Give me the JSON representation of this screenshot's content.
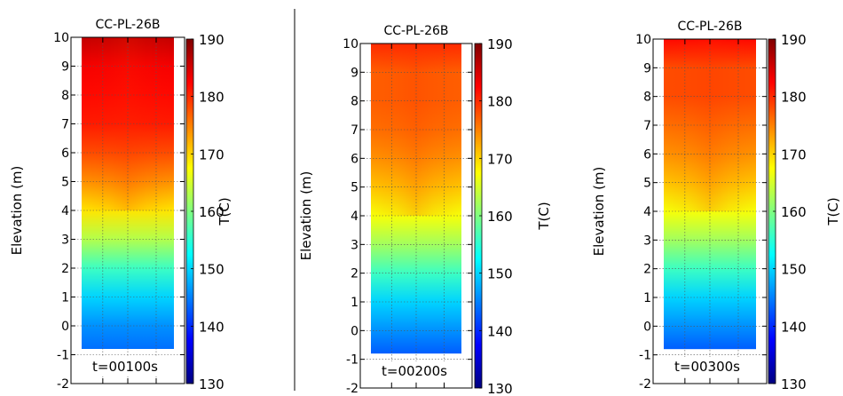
{
  "chart_data": [
    {
      "type": "heatmap",
      "title": "CC-PL-26B",
      "ylabel": "Elevation (m)",
      "ylim": [
        -2,
        10
      ],
      "yticks": [
        "10",
        "9",
        "8",
        "7",
        "6",
        "5",
        "4",
        "3",
        "2",
        "1",
        "0",
        "-1",
        "-2"
      ],
      "time_label": "t=00100s",
      "colorbar": {
        "label": "T(C)",
        "range": [
          130,
          190
        ],
        "ticks": [
          "190",
          "180",
          "170",
          "160",
          "150",
          "140",
          "130"
        ]
      },
      "data_extent": [
        -0.8,
        10
      ],
      "grid": true,
      "profile": [
        {
          "elev": -0.8,
          "T": 144
        },
        {
          "elev": 0,
          "T": 146
        },
        {
          "elev": 1,
          "T": 150
        },
        {
          "elev": 2,
          "T": 156
        },
        {
          "elev": 3,
          "T": 163
        },
        {
          "elev": 4,
          "T": 169
        },
        {
          "elev": 5,
          "T": 174
        },
        {
          "elev": 6,
          "T": 178
        },
        {
          "elev": 7,
          "T": 181
        },
        {
          "elev": 8,
          "T": 182
        },
        {
          "elev": 9,
          "T": 183
        },
        {
          "elev": 10,
          "T": 186
        }
      ]
    },
    {
      "type": "heatmap",
      "title": "CC-PL-26B",
      "ylabel": "Elevation (m)",
      "ylim": [
        -2,
        10
      ],
      "yticks": [
        "10",
        "9",
        "8",
        "7",
        "6",
        "5",
        "4",
        "3",
        "2",
        "1",
        "0",
        "-1",
        "-2"
      ],
      "time_label": "t=00200s",
      "colorbar": {
        "label": "T(C)",
        "range": [
          130,
          190
        ],
        "ticks": [
          "190",
          "180",
          "170",
          "160",
          "150",
          "140",
          "130"
        ]
      },
      "data_extent": [
        -0.8,
        10
      ],
      "grid": true,
      "profile": [
        {
          "elev": -0.8,
          "T": 143
        },
        {
          "elev": 0,
          "T": 146
        },
        {
          "elev": 1,
          "T": 150
        },
        {
          "elev": 2,
          "T": 156
        },
        {
          "elev": 3,
          "T": 162
        },
        {
          "elev": 4,
          "T": 167
        },
        {
          "elev": 5,
          "T": 171
        },
        {
          "elev": 6,
          "T": 174
        },
        {
          "elev": 7,
          "T": 176
        },
        {
          "elev": 8,
          "T": 177
        },
        {
          "elev": 9,
          "T": 177
        },
        {
          "elev": 10,
          "T": 180
        }
      ]
    },
    {
      "type": "heatmap",
      "title": "CC-PL-26B",
      "ylabel": "Elevation (m)",
      "ylim": [
        -2,
        10
      ],
      "yticks": [
        "10",
        "9",
        "8",
        "7",
        "6",
        "5",
        "4",
        "3",
        "2",
        "1",
        "0",
        "-1",
        "-2"
      ],
      "time_label": "t=00300s",
      "colorbar": {
        "label": "T(C)",
        "range": [
          130,
          190
        ],
        "ticks": [
          "190",
          "180",
          "170",
          "160",
          "150",
          "140",
          "130"
        ]
      },
      "data_extent": [
        -0.8,
        10
      ],
      "grid": true,
      "profile": [
        {
          "elev": -0.8,
          "T": 143
        },
        {
          "elev": 0,
          "T": 146
        },
        {
          "elev": 1,
          "T": 150
        },
        {
          "elev": 2,
          "T": 156
        },
        {
          "elev": 3,
          "T": 162
        },
        {
          "elev": 4,
          "T": 167
        },
        {
          "elev": 5,
          "T": 171
        },
        {
          "elev": 6,
          "T": 174
        },
        {
          "elev": 7,
          "T": 176
        },
        {
          "elev": 8,
          "T": 178
        },
        {
          "elev": 9,
          "T": 178
        },
        {
          "elev": 10,
          "T": 182
        }
      ]
    }
  ]
}
